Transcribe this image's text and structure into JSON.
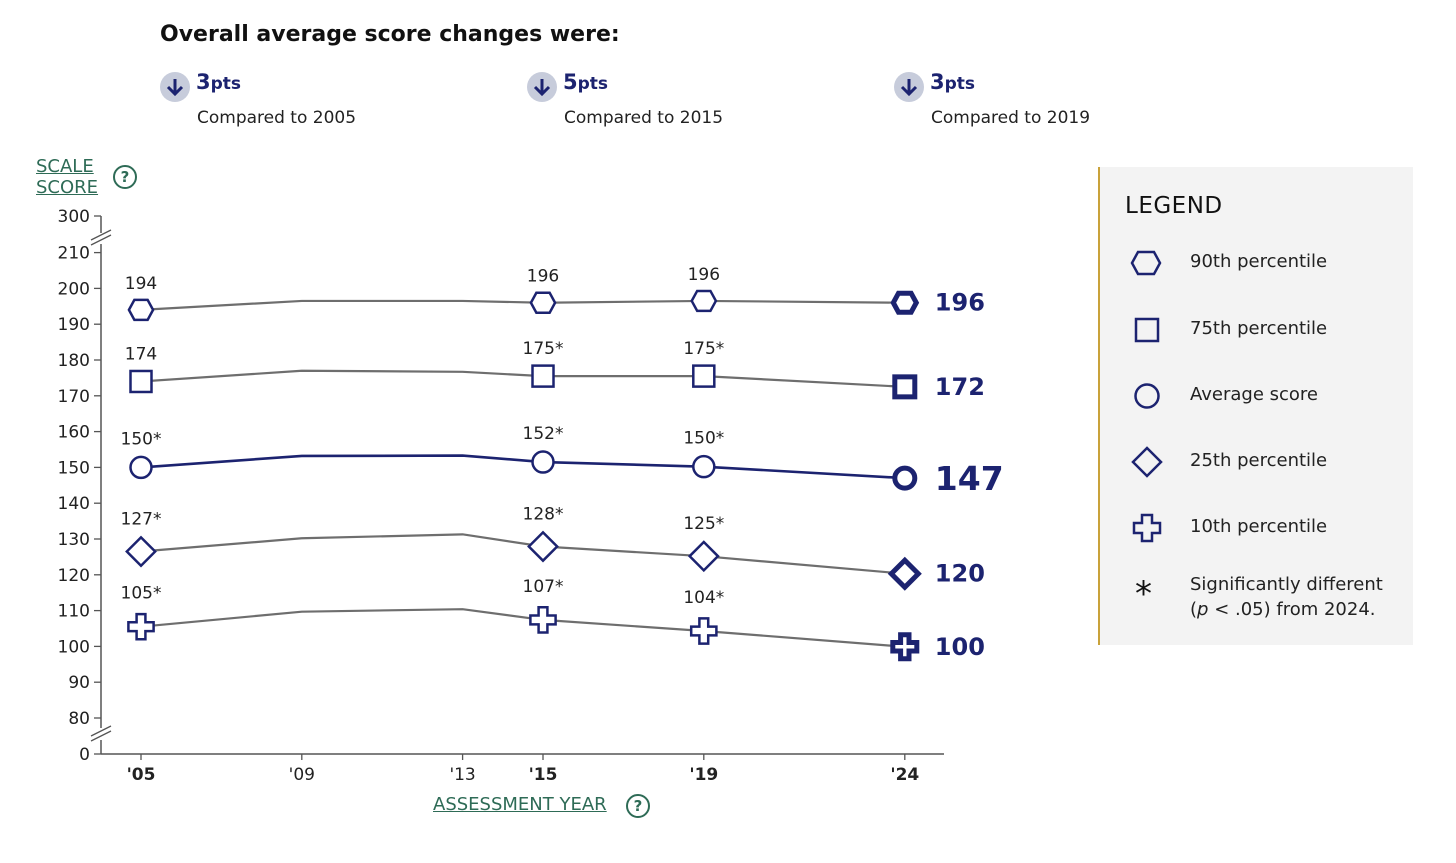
{
  "header": {
    "title": "Overall average score changes were:",
    "changes": [
      {
        "direction": "down",
        "value": "3",
        "unit": "pts",
        "compared": "Compared to 2005"
      },
      {
        "direction": "down",
        "value": "5",
        "unit": "pts",
        "compared": "Compared to 2015"
      },
      {
        "direction": "down",
        "value": "3",
        "unit": "pts",
        "compared": "Compared to 2019"
      }
    ]
  },
  "axes": {
    "y_title_line1": "SCALE",
    "y_title_line2": "SCORE",
    "x_title": "ASSESSMENT YEAR",
    "help_glyph": "?"
  },
  "legend": {
    "title": "LEGEND",
    "items": [
      {
        "marker": "hexagon",
        "label": "90th percentile"
      },
      {
        "marker": "square",
        "label": "75th percentile"
      },
      {
        "marker": "circle",
        "label": "Average score"
      },
      {
        "marker": "diamond",
        "label": "25th percentile"
      },
      {
        "marker": "plus",
        "label": "10th percentile"
      }
    ],
    "significance": {
      "symbol": "*",
      "line1_prefix": "Significantly different",
      "line2_pre": "(",
      "line2_p": "p",
      "line2_post": " < .05) from 2024."
    }
  },
  "colors": {
    "navy": "#1c2370",
    "gray_line": "#6e6e6e",
    "badge": "#c7ccdb",
    "link": "#2e6b56",
    "legend_bg": "#f3f3f3",
    "legend_border": "#c9a23a"
  },
  "chart_data": {
    "type": "line",
    "x": [
      2005,
      2009,
      2013,
      2015,
      2019,
      2024
    ],
    "x_tick_labels": [
      "'05",
      "'09",
      "'13",
      "'15",
      "'19",
      "'24"
    ],
    "x_tick_bold": [
      true,
      false,
      false,
      true,
      true,
      true
    ],
    "y_ticks": [
      0,
      80,
      90,
      100,
      110,
      120,
      130,
      140,
      150,
      160,
      170,
      180,
      190,
      200,
      210,
      300
    ],
    "y_axis_breaks": [
      "0-80",
      "210-300"
    ],
    "ylim": [
      80,
      210
    ],
    "series": [
      {
        "name": "90th percentile",
        "marker": "hexagon",
        "values": [
          194,
          196.5,
          196.5,
          196,
          196.5,
          196
        ],
        "labels": [
          "194",
          null,
          null,
          "196",
          "196",
          null
        ],
        "final_label": "196"
      },
      {
        "name": "75th percentile",
        "marker": "square",
        "values": [
          174,
          177,
          176.7,
          175.5,
          175.5,
          172.5
        ],
        "labels": [
          "174",
          null,
          null,
          "175*",
          "175*",
          null
        ],
        "final_label": "172"
      },
      {
        "name": "Average score",
        "marker": "circle",
        "values": [
          150,
          153.2,
          153.3,
          151.5,
          150.2,
          147
        ],
        "labels": [
          "150*",
          null,
          null,
          "152*",
          "150*",
          null
        ],
        "final_label": "147"
      },
      {
        "name": "25th percentile",
        "marker": "diamond",
        "values": [
          126.5,
          130.2,
          131.3,
          127.9,
          125.2,
          120.3
        ],
        "labels": [
          "127*",
          null,
          null,
          "128*",
          "125*",
          null
        ],
        "final_label": "120"
      },
      {
        "name": "10th percentile",
        "marker": "plus",
        "values": [
          105.5,
          109.7,
          110.4,
          107.4,
          104.3,
          99.9
        ],
        "labels": [
          "105*",
          null,
          null,
          "107*",
          "104*",
          null
        ],
        "final_label": "100"
      }
    ]
  }
}
